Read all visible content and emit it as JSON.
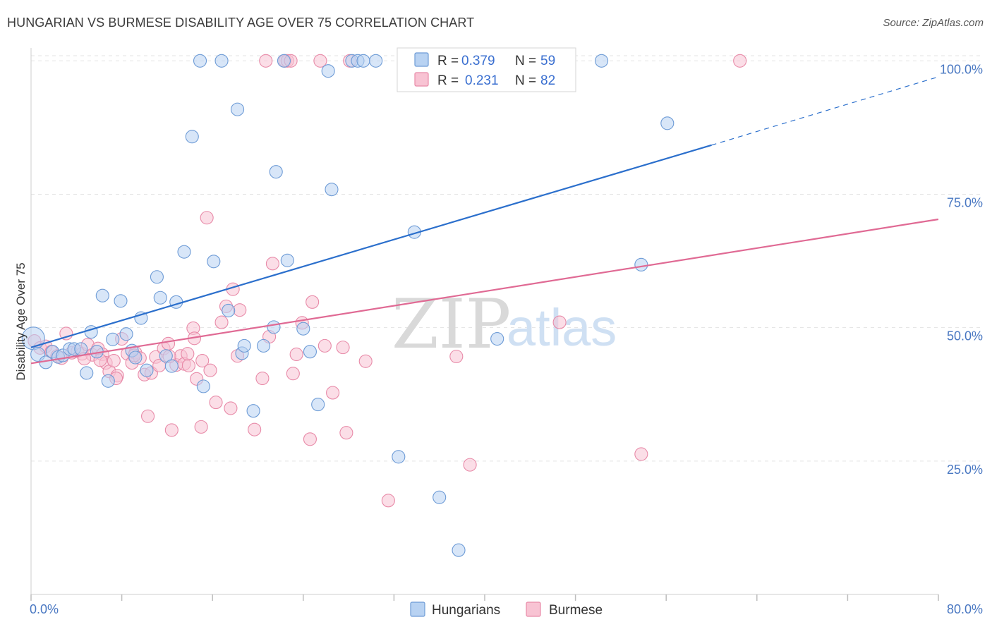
{
  "title": "HUNGARIAN VS BURMESE DISABILITY AGE OVER 75 CORRELATION CHART",
  "source": "Source: ZipAtlas.com",
  "watermark": {
    "zip": "ZIP",
    "atlas": "atlas"
  },
  "colors": {
    "hungarians_fill": "#b8d2f2",
    "hungarians_stroke": "#6d9bd6",
    "hungarians_line": "#2b6fcc",
    "burmese_fill": "#f8c3d3",
    "burmese_stroke": "#e88aa8",
    "burmese_line": "#e06a94",
    "grid": "#e3e3e3",
    "tick_label": "#4a78c2"
  },
  "legend": {
    "r_label": "R =",
    "n_label": "N =",
    "hungarians": {
      "r": "0.379",
      "n": "59"
    },
    "burmese": {
      "r": "0.231",
      "n": "82"
    }
  },
  "chart_data": {
    "type": "scatter",
    "title": "HUNGARIAN VS BURMESE DISABILITY AGE OVER 75 CORRELATION CHART",
    "xlabel": "",
    "ylabel": "Disability Age Over 75",
    "xlim": [
      0,
      80
    ],
    "ylim": [
      0,
      104
    ],
    "x_tick_labels": [
      "0.0%",
      "80.0%"
    ],
    "y_ticks": [
      25,
      50,
      75,
      100
    ],
    "y_tick_labels": [
      "25.0%",
      "50.0%",
      "75.0%",
      "100.0%"
    ],
    "grid": true,
    "series": [
      {
        "name": "Hungarians",
        "r": 0.379,
        "n": 59,
        "trend": {
          "x0": 0,
          "y0": 46.3,
          "x1": 60,
          "y1": 84.2,
          "dash_to_x": 80,
          "dash_to_y": 97.0
        },
        "points": [
          [
            0.2,
            48,
            16
          ],
          [
            0.6,
            45,
            10
          ],
          [
            1.3,
            43.5,
            9
          ],
          [
            1.9,
            45.5,
            9
          ],
          [
            2.4,
            44.5,
            9
          ],
          [
            2.8,
            44.8,
            9
          ],
          [
            3.4,
            46,
            9
          ],
          [
            3.8,
            46,
            9
          ],
          [
            4.4,
            46,
            9
          ],
          [
            4.9,
            41.5,
            9
          ],
          [
            5.3,
            49.2,
            9
          ],
          [
            5.8,
            45.5,
            9
          ],
          [
            6.3,
            56,
            9
          ],
          [
            6.8,
            40,
            9
          ],
          [
            7.2,
            47.8,
            9
          ],
          [
            7.9,
            55,
            9
          ],
          [
            8.4,
            48.8,
            9
          ],
          [
            8.9,
            45.7,
            9
          ],
          [
            9.2,
            44.4,
            9
          ],
          [
            9.7,
            51.8,
            9
          ],
          [
            10.2,
            42,
            9
          ],
          [
            11.1,
            59.5,
            9
          ],
          [
            11.4,
            55.6,
            9
          ],
          [
            11.9,
            44.7,
            9
          ],
          [
            12.4,
            42.8,
            9
          ],
          [
            12.8,
            54.8,
            9
          ],
          [
            13.5,
            64.2,
            9
          ],
          [
            14.2,
            85.8,
            9
          ],
          [
            14.9,
            100,
            9
          ],
          [
            15.2,
            39,
            9
          ],
          [
            16.1,
            62.4,
            9
          ],
          [
            16.8,
            100,
            9
          ],
          [
            17.4,
            53.2,
            9
          ],
          [
            18.2,
            90.9,
            9
          ],
          [
            18.6,
            45.2,
            9
          ],
          [
            18.8,
            46.6,
            9
          ],
          [
            19.6,
            34.4,
            9
          ],
          [
            20.5,
            46.6,
            9
          ],
          [
            21.4,
            50.1,
            9
          ],
          [
            21.6,
            79.2,
            9
          ],
          [
            22.6,
            62.6,
            9
          ],
          [
            24,
            49.8,
            9
          ],
          [
            24.6,
            45.5,
            9
          ],
          [
            25.3,
            35.6,
            9
          ],
          [
            26.2,
            98.1,
            9
          ],
          [
            26.5,
            75.9,
            9
          ],
          [
            28.3,
            100,
            9
          ],
          [
            28.8,
            100,
            9
          ],
          [
            29.3,
            100,
            9
          ],
          [
            30.4,
            100,
            9
          ],
          [
            32.4,
            25.8,
            9
          ],
          [
            33.8,
            67.9,
            9
          ],
          [
            36,
            18.2,
            9
          ],
          [
            37.7,
            8.3,
            9
          ],
          [
            41.1,
            47.9,
            9
          ],
          [
            50.3,
            100,
            9
          ],
          [
            53.8,
            61.8,
            9
          ],
          [
            56.1,
            88.3,
            9
          ],
          [
            22.3,
            100,
            9
          ]
        ]
      },
      {
        "name": "Burmese",
        "r": 0.231,
        "n": 82,
        "trend": {
          "x0": 0,
          "y0": 43.3,
          "x1": 80,
          "y1": 70.3
        },
        "points": [
          [
            0.3,
            47.5,
            9
          ],
          [
            0.8,
            46.2,
            9
          ],
          [
            1.3,
            46.5,
            9
          ],
          [
            1.8,
            45.5,
            9
          ],
          [
            2.3,
            44.7,
            9
          ],
          [
            2.7,
            44.3,
            9
          ],
          [
            3.1,
            48.9,
            9
          ],
          [
            3.6,
            45.3,
            9
          ],
          [
            4.1,
            45.6,
            9
          ],
          [
            4.5,
            45.1,
            9
          ],
          [
            5,
            46.8,
            9
          ],
          [
            5.4,
            44.9,
            9
          ],
          [
            5.9,
            46.1,
            9
          ],
          [
            6.3,
            45,
            9
          ],
          [
            6.6,
            43.4,
            9
          ],
          [
            6.9,
            41.8,
            9
          ],
          [
            7.3,
            43.8,
            9
          ],
          [
            7.6,
            41,
            9
          ],
          [
            8,
            47.9,
            9
          ],
          [
            8.5,
            45.1,
            9
          ],
          [
            8.9,
            43.4,
            9
          ],
          [
            9.2,
            45.3,
            9
          ],
          [
            9.6,
            44.3,
            9
          ],
          [
            10,
            41.2,
            9
          ],
          [
            10.3,
            33.4,
            9
          ],
          [
            10.6,
            41.5,
            9
          ],
          [
            11,
            44.5,
            9
          ],
          [
            11.3,
            42.9,
            9
          ],
          [
            11.7,
            46.1,
            9
          ],
          [
            12.1,
            47,
            9
          ],
          [
            12.4,
            30.8,
            9
          ],
          [
            12.8,
            43,
            9
          ],
          [
            13.2,
            44.7,
            9
          ],
          [
            13.5,
            43.2,
            9
          ],
          [
            13.9,
            42.9,
            9
          ],
          [
            14.3,
            49.9,
            9
          ],
          [
            14.6,
            40.4,
            9
          ],
          [
            15.1,
            43.8,
            9
          ],
          [
            15.5,
            70.6,
            9
          ],
          [
            15.8,
            42,
            9
          ],
          [
            16.3,
            36,
            9
          ],
          [
            16.8,
            51,
            9
          ],
          [
            17.2,
            54,
            9
          ],
          [
            17.6,
            34.9,
            9
          ],
          [
            17.8,
            57.2,
            9
          ],
          [
            18.4,
            53.3,
            9
          ],
          [
            19.7,
            30.9,
            9
          ],
          [
            20.4,
            40.5,
            9
          ],
          [
            20.7,
            100,
            9
          ],
          [
            21,
            48.3,
            9
          ],
          [
            21.3,
            62,
            9
          ],
          [
            22.4,
            100,
            9
          ],
          [
            22.6,
            100,
            9
          ],
          [
            23.1,
            41.4,
            9
          ],
          [
            23.4,
            45,
            9
          ],
          [
            23.9,
            50.9,
            9
          ],
          [
            24.6,
            29.1,
            9
          ],
          [
            24.8,
            54.8,
            9
          ],
          [
            25.9,
            46.6,
            9
          ],
          [
            26.6,
            37.8,
            9
          ],
          [
            27.5,
            46.3,
            9
          ],
          [
            27.8,
            30.3,
            9
          ],
          [
            28.1,
            100,
            9
          ],
          [
            29.5,
            43.7,
            9
          ],
          [
            31.5,
            17.6,
            9
          ],
          [
            33.8,
            100,
            9
          ],
          [
            37.5,
            44.6,
            9
          ],
          [
            38.7,
            24.3,
            9
          ],
          [
            46.6,
            51,
            9
          ],
          [
            53.8,
            26.3,
            9
          ],
          [
            62.5,
            100,
            9
          ],
          [
            25.5,
            100,
            9
          ],
          [
            14.4,
            48,
            9
          ],
          [
            13.8,
            45.1,
            9
          ],
          [
            18.2,
            44.7,
            9
          ],
          [
            9.1,
            44.8,
            9
          ],
          [
            6.1,
            43.9,
            9
          ],
          [
            22.9,
            100,
            9
          ],
          [
            15,
            31.4,
            9
          ],
          [
            7.5,
            40.5,
            9
          ],
          [
            12.2,
            44.6,
            9
          ],
          [
            4.7,
            44.2,
            9
          ]
        ]
      }
    ]
  },
  "bottom_legend": [
    "Hungarians",
    "Burmese"
  ]
}
